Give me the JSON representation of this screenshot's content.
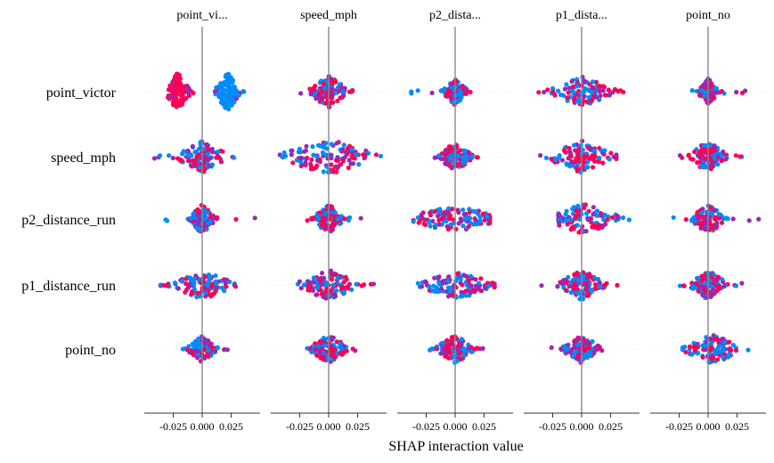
{
  "chart_data": {
    "type": "scatter",
    "subtype": "shap-interaction-beeswarm-grid",
    "xlabel": "SHAP interaction value",
    "columns": [
      "point_vi...",
      "speed_mph",
      "p2_dista...",
      "p1_dista...",
      "point_no"
    ],
    "rows": [
      "point_victor",
      "speed_mph",
      "p2_distance_run",
      "p1_distance_run",
      "point_no"
    ],
    "xlim": [
      -0.05,
      0.05
    ],
    "xticks": [
      -0.025,
      0.0,
      0.025
    ],
    "xtick_labels": [
      "-0.025",
      "0.000",
      "0.025"
    ],
    "gridlines": "dotted-horizontal-per-row",
    "colors": {
      "low": "#008bfb",
      "mid": "#9c27b0",
      "high": "#ff0052",
      "zero_line": "#888888",
      "axis": "#333333"
    },
    "cells": [
      [
        {
          "row": "point_victor",
          "col": "point_vi...",
          "clusters": [
            {
              "center": -0.021,
              "spread": 0.005,
              "height": 22,
              "tone": "high"
            },
            {
              "center": 0.022,
              "spread": 0.005,
              "height": 22,
              "tone": "low"
            }
          ],
          "range": [
            -0.036,
            0.036
          ]
        },
        {
          "row": "point_victor",
          "col": "speed_mph",
          "center": 0.0,
          "spread": 0.008,
          "height": 18,
          "range": [
            -0.042,
            0.04
          ]
        },
        {
          "row": "point_victor",
          "col": "p2_dista...",
          "center": 0.0,
          "spread": 0.005,
          "height": 15,
          "range": [
            -0.045,
            0.046
          ]
        },
        {
          "row": "point_victor",
          "col": "p1_dista...",
          "center": 0.0,
          "spread": 0.014,
          "height": 17,
          "range": [
            -0.038,
            0.036
          ]
        },
        {
          "row": "point_victor",
          "col": "point_no",
          "center": 0.0,
          "spread": 0.004,
          "height": 15,
          "range": [
            -0.022,
            0.04
          ]
        }
      ],
      [
        {
          "row": "speed_mph",
          "col": "point_vi...",
          "center": 0.0,
          "spread": 0.011,
          "height": 18,
          "range": [
            -0.042,
            0.04
          ]
        },
        {
          "row": "speed_mph",
          "col": "speed_mph",
          "center": 0.0,
          "spread": 0.02,
          "height": 20,
          "range": [
            -0.045,
            0.045
          ]
        },
        {
          "row": "speed_mph",
          "col": "p2_dista...",
          "center": 0.0,
          "spread": 0.007,
          "height": 16,
          "range": [
            -0.025,
            0.025
          ]
        },
        {
          "row": "speed_mph",
          "col": "p1_dista...",
          "center": 0.0,
          "spread": 0.014,
          "height": 18,
          "range": [
            -0.048,
            0.03
          ]
        },
        {
          "row": "speed_mph",
          "col": "point_no",
          "center": 0.0,
          "spread": 0.008,
          "height": 18,
          "range": [
            -0.03,
            0.048
          ]
        }
      ],
      [
        {
          "row": "p2_distance_run",
          "col": "point_vi...",
          "center": 0.0,
          "spread": 0.005,
          "height": 17,
          "range": [
            -0.046,
            0.046
          ]
        },
        {
          "row": "p2_distance_run",
          "col": "speed_mph",
          "center": 0.0,
          "spread": 0.006,
          "height": 17,
          "range": [
            -0.022,
            0.03
          ]
        },
        {
          "row": "p2_distance_run",
          "col": "p2_dista...",
          "center": 0.0,
          "spread": 0.02,
          "height": 16,
          "range": [
            -0.036,
            0.03
          ]
        },
        {
          "row": "p2_distance_run",
          "col": "p1_dista...",
          "center": 0.002,
          "spread": 0.016,
          "height": 17,
          "range": [
            -0.02,
            0.045
          ]
        },
        {
          "row": "p2_distance_run",
          "col": "point_no",
          "center": 0.0,
          "spread": 0.007,
          "height": 17,
          "range": [
            -0.042,
            0.048
          ]
        }
      ],
      [
        {
          "row": "p1_distance_run",
          "col": "point_vi...",
          "center": 0.0,
          "spread": 0.013,
          "height": 17,
          "range": [
            -0.036,
            0.03
          ]
        },
        {
          "row": "p1_distance_run",
          "col": "speed_mph",
          "center": 0.0,
          "spread": 0.013,
          "height": 17,
          "range": [
            -0.045,
            0.04
          ]
        },
        {
          "row": "p1_distance_run",
          "col": "p2_dista...",
          "center": 0.002,
          "spread": 0.016,
          "height": 16,
          "range": [
            -0.032,
            0.034
          ]
        },
        {
          "row": "p1_distance_run",
          "col": "p1_dista...",
          "center": 0.0,
          "spread": 0.01,
          "height": 17,
          "range": [
            -0.036,
            0.038
          ]
        },
        {
          "row": "p1_distance_run",
          "col": "point_no",
          "center": 0.0,
          "spread": 0.008,
          "height": 17,
          "range": [
            -0.025,
            0.032
          ]
        }
      ],
      [
        {
          "row": "point_no",
          "col": "point_vi...",
          "center": 0.0,
          "spread": 0.006,
          "height": 15,
          "range": [
            -0.02,
            0.022
          ]
        },
        {
          "row": "point_no",
          "col": "speed_mph",
          "center": 0.0,
          "spread": 0.008,
          "height": 16,
          "range": [
            -0.032,
            0.028
          ]
        },
        {
          "row": "point_no",
          "col": "p2_dista...",
          "center": 0.0,
          "spread": 0.008,
          "height": 16,
          "range": [
            -0.04,
            0.03
          ]
        },
        {
          "row": "point_no",
          "col": "p1_dista...",
          "center": 0.0,
          "spread": 0.008,
          "height": 16,
          "range": [
            -0.026,
            0.028
          ]
        },
        {
          "row": "point_no",
          "col": "point_no",
          "center": 0.004,
          "spread": 0.012,
          "height": 17,
          "range": [
            -0.022,
            0.036
          ]
        }
      ]
    ]
  }
}
